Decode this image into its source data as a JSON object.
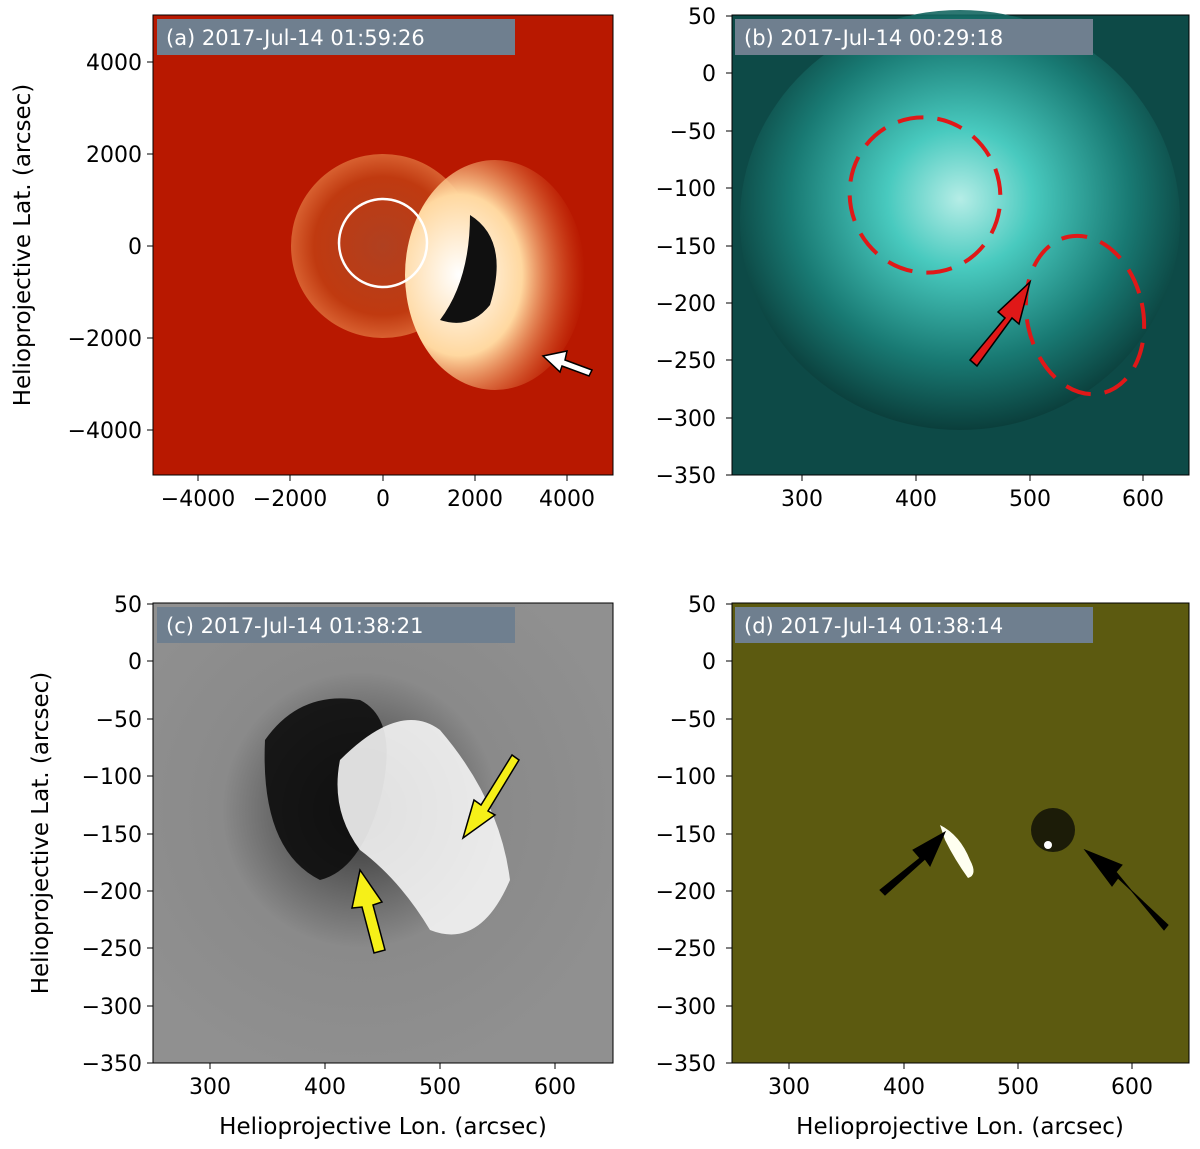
{
  "panels": [
    {
      "id": "a",
      "title": "(a) 2017-Jul-14 01:59:26",
      "x_ticks": [
        "−4000",
        "−2000",
        "0",
        "2000",
        "4000"
      ],
      "y_ticks": [
        "4000",
        "2000",
        "0",
        "−2000",
        "−4000"
      ],
      "ylabel": "Helioprojective Lat. (arcsec)",
      "xlabel": ""
    },
    {
      "id": "b",
      "title": "(b) 2017-Jul-14 00:29:18",
      "x_ticks": [
        "300",
        "400",
        "500",
        "600"
      ],
      "y_ticks": [
        "50",
        "0",
        "−50",
        "−100",
        "−150",
        "−200",
        "−250",
        "−300",
        "−350"
      ],
      "ylabel": "",
      "xlabel": ""
    },
    {
      "id": "c",
      "title": "(c) 2017-Jul-14 01:38:21",
      "x_ticks": [
        "300",
        "400",
        "500",
        "600"
      ],
      "y_ticks": [
        "50",
        "0",
        "−50",
        "−100",
        "−150",
        "−200",
        "−250",
        "−300",
        "−350"
      ],
      "ylabel": "Helioprojective Lat. (arcsec)",
      "xlabel": "Helioprojective Lon. (arcsec)"
    },
    {
      "id": "d",
      "title": "(d) 2017-Jul-14 01:38:14",
      "x_ticks": [
        "300",
        "400",
        "500",
        "600"
      ],
      "y_ticks": [
        "50",
        "0",
        "−50",
        "−100",
        "−150",
        "−200",
        "−250",
        "−300",
        "−350"
      ],
      "ylabel": "",
      "xlabel": "Helioprojective Lon. (arcsec)"
    }
  ],
  "colors": {
    "title_box": "#6f7f8f",
    "panel_a_bg": "#b81800",
    "panel_b_bg": "#0d4a47",
    "panel_c_bg": "#8c8c8c",
    "panel_d_bg": "#5c5a10",
    "ellipse_red": "#e01818",
    "arrow_red": "#e01818",
    "arrow_yellow": "#f6f018",
    "arrow_white": "#ffffff",
    "arrow_black": "#000000"
  }
}
